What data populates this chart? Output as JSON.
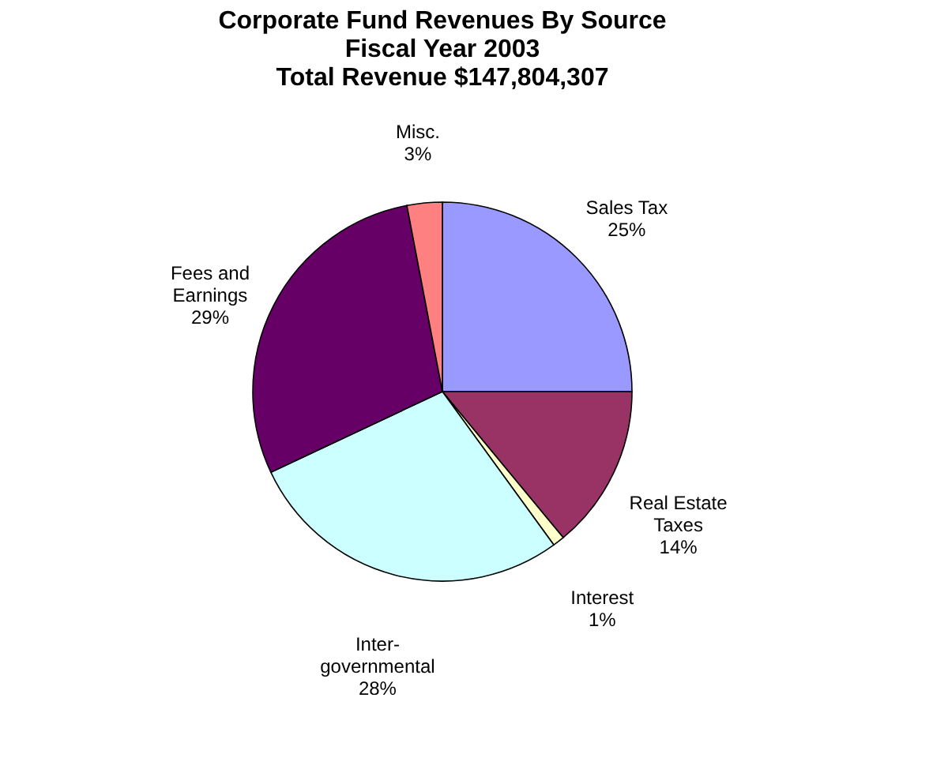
{
  "chart_data": {
    "type": "pie",
    "title": "Corporate Fund Revenues By Source\nFiscal Year 2003\nTotal Revenue $147,804,307",
    "categories": [
      "Sales Tax",
      "Real Estate Taxes",
      "Interest",
      "Inter-governmental",
      "Fees and Earnings",
      "Misc."
    ],
    "values": [
      25,
      14,
      1,
      28,
      29,
      3
    ],
    "value_labels": [
      "25%",
      "14%",
      "1%",
      "28%",
      "29%",
      "3%"
    ],
    "colors": [
      "#9999ff",
      "#993366",
      "#ffffcc",
      "#ccffff",
      "#660066",
      "#ff8080"
    ],
    "legend": false
  }
}
